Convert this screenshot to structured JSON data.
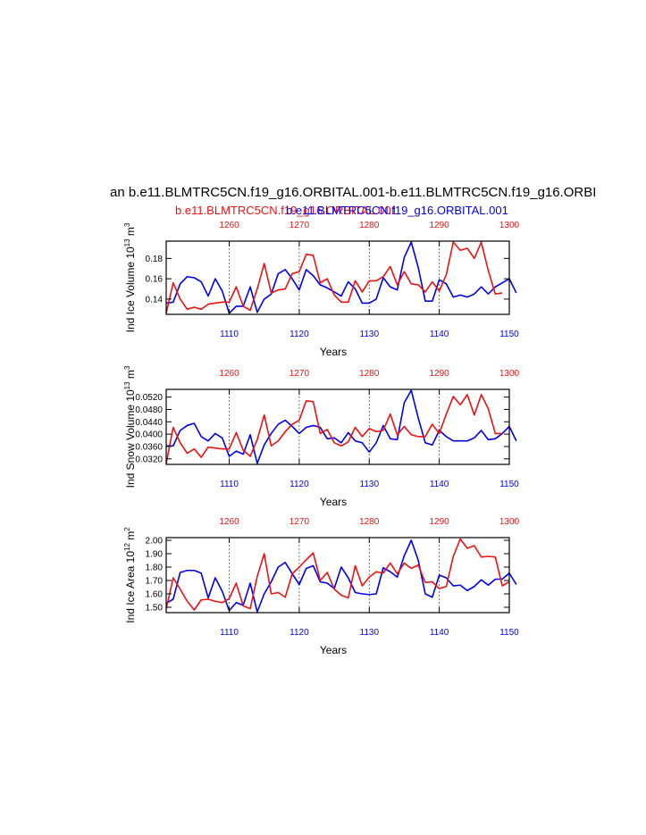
{
  "title": "an b.e11.BLMTRC5CN.f19_g16.ORBITAL.001-b.e11.BLMTRC5CN.f19_g16.ORBI",
  "subtitle_left": "b.e11.BLMTRC5CN.f19_g16.ORBITAL.001",
  "subtitle_right": "b.e11.BLMTRC5CN.f19_g16.ORBITAL.001",
  "colors": {
    "red": "#ee1111",
    "blue": "#0000ee",
    "axis": "#000000"
  },
  "chart_data": [
    {
      "type": "line",
      "ylabel": "Ind Ice Volume 10",
      "ylabel_exp": "13",
      "ylabel_unit": "m",
      "ylabel_unit_exp": "3",
      "xlabel": "Years",
      "ylim": [
        0.125,
        0.197
      ],
      "yticks": [
        0.14,
        0.16,
        0.18
      ],
      "ytick_labels": [
        "0.14",
        "0.16",
        "0.18"
      ],
      "bottom_xlim": [
        1101,
        1150
      ],
      "bottom_xticks": [
        1110,
        1120,
        1130,
        1140,
        1150
      ],
      "top_xlim": [
        1251,
        1300
      ],
      "top_xticks": [
        1260,
        1270,
        1280,
        1290,
        1300
      ],
      "series": [
        {
          "color": "blue",
          "axis": "bottom",
          "x_start": 1101,
          "values": [
            0.136,
            0.137,
            0.155,
            0.162,
            0.161,
            0.157,
            0.143,
            0.16,
            0.148,
            0.126,
            0.133,
            0.133,
            0.152,
            0.127,
            0.14,
            0.145,
            0.165,
            0.169,
            0.16,
            0.149,
            0.169,
            0.163,
            0.154,
            0.151,
            0.147,
            0.143,
            0.157,
            0.15,
            0.136,
            0.136,
            0.14,
            0.161,
            0.152,
            0.149,
            0.181,
            0.196,
            0.171,
            0.138,
            0.138,
            0.159,
            0.155,
            0.142,
            0.144,
            0.142,
            0.145,
            0.152,
            0.145,
            0.152,
            0.156,
            0.16,
            0.146
          ]
        },
        {
          "color": "red",
          "axis": "top",
          "x_start": 1251,
          "values": [
            0.126,
            0.156,
            0.14,
            0.13,
            0.132,
            0.13,
            0.135,
            0.136,
            0.137,
            0.137,
            0.152,
            0.133,
            0.129,
            0.15,
            0.175,
            0.146,
            0.149,
            0.15,
            0.165,
            0.167,
            0.184,
            0.183,
            0.156,
            0.16,
            0.144,
            0.137,
            0.137,
            0.158,
            0.147,
            0.158,
            0.158,
            0.162,
            0.172,
            0.154,
            0.167,
            0.155,
            0.154,
            0.147,
            0.157,
            0.148,
            0.164,
            0.196,
            0.188,
            0.19,
            0.18,
            0.196,
            0.168,
            0.145,
            0.146
          ]
        }
      ]
    },
    {
      "type": "line",
      "ylabel": "Ind Snow Volume 10",
      "ylabel_exp": "13",
      "ylabel_unit": "m",
      "ylabel_unit_exp": "3",
      "xlabel": "Years",
      "ylim": [
        0.0302,
        0.0545
      ],
      "yticks": [
        0.032,
        0.036,
        0.04,
        0.044,
        0.048,
        0.052
      ],
      "ytick_labels": [
        "0.0320",
        "0.0360",
        "0.0400",
        "0.0440",
        "0.0480",
        "0.0520"
      ],
      "bottom_xlim": [
        1101,
        1150
      ],
      "bottom_xticks": [
        1110,
        1120,
        1130,
        1140,
        1150
      ],
      "top_xlim": [
        1251,
        1300
      ],
      "top_xticks": [
        1260,
        1270,
        1280,
        1290,
        1300
      ],
      "series": [
        {
          "color": "blue",
          "axis": "bottom",
          "x_start": 1101,
          "values": [
            0.0362,
            0.0362,
            0.0412,
            0.0428,
            0.0435,
            0.0392,
            0.0378,
            0.0402,
            0.0388,
            0.0328,
            0.0345,
            0.0335,
            0.0398,
            0.0305,
            0.0365,
            0.0402,
            0.0432,
            0.0445,
            0.0425,
            0.0402,
            0.0422,
            0.0428,
            0.0422,
            0.0385,
            0.0388,
            0.0372,
            0.0405,
            0.0378,
            0.0372,
            0.0342,
            0.0372,
            0.0428,
            0.0385,
            0.0382,
            0.0502,
            0.0542,
            0.0452,
            0.0372,
            0.0365,
            0.0412,
            0.0392,
            0.0378,
            0.0378,
            0.0378,
            0.0388,
            0.0412,
            0.0382,
            0.0385,
            0.0402,
            0.0425,
            0.0378
          ]
        },
        {
          "color": "red",
          "axis": "top",
          "x_start": 1251,
          "values": [
            0.0305,
            0.0422,
            0.0372,
            0.0338,
            0.0352,
            0.0325,
            0.0358,
            0.0355,
            0.0352,
            0.0352,
            0.0405,
            0.0348,
            0.0328,
            0.0382,
            0.0462,
            0.0362,
            0.0378,
            0.0408,
            0.0432,
            0.0445,
            0.0508,
            0.0505,
            0.0402,
            0.0415,
            0.0372,
            0.0362,
            0.0375,
            0.0422,
            0.0392,
            0.0418,
            0.0408,
            0.0412,
            0.0465,
            0.0398,
            0.0425,
            0.0398,
            0.0392,
            0.0392,
            0.0432,
            0.0402,
            0.0465,
            0.0522,
            0.0495,
            0.0528,
            0.0462,
            0.0528,
            0.0482,
            0.0402,
            0.0402
          ]
        }
      ]
    },
    {
      "type": "line",
      "ylabel": "Ind Ice Area 10",
      "ylabel_exp": "12",
      "ylabel_unit": "m",
      "ylabel_unit_exp": "2",
      "xlabel": "Years",
      "ylim": [
        1.46,
        2.02
      ],
      "yticks": [
        1.5,
        1.6,
        1.7,
        1.8,
        1.9,
        2.0
      ],
      "ytick_labels": [
        "1.50",
        "1.60",
        "1.70",
        "1.80",
        "1.90",
        "2.00"
      ],
      "bottom_xlim": [
        1101,
        1150
      ],
      "bottom_xticks": [
        1110,
        1120,
        1130,
        1140,
        1150
      ],
      "top_xlim": [
        1251,
        1300
      ],
      "top_xticks": [
        1260,
        1270,
        1280,
        1290,
        1300
      ],
      "series": [
        {
          "color": "blue",
          "axis": "bottom",
          "x_start": 1101,
          "values": [
            1.53,
            1.56,
            1.76,
            1.775,
            1.775,
            1.755,
            1.57,
            1.72,
            1.62,
            1.475,
            1.535,
            1.515,
            1.68,
            1.465,
            1.6,
            1.69,
            1.8,
            1.835,
            1.75,
            1.67,
            1.79,
            1.81,
            1.69,
            1.68,
            1.64,
            1.8,
            1.72,
            1.61,
            1.6,
            1.595,
            1.6,
            1.795,
            1.765,
            1.725,
            1.885,
            2.0,
            1.85,
            1.6,
            1.575,
            1.74,
            1.72,
            1.66,
            1.665,
            1.625,
            1.655,
            1.705,
            1.665,
            1.71,
            1.71,
            1.755,
            1.67
          ]
        },
        {
          "color": "red",
          "axis": "top",
          "x_start": 1251,
          "values": [
            1.485,
            1.72,
            1.635,
            1.545,
            1.48,
            1.555,
            1.56,
            1.545,
            1.535,
            1.565,
            1.68,
            1.51,
            1.49,
            1.73,
            1.9,
            1.6,
            1.61,
            1.575,
            1.75,
            1.8,
            1.855,
            1.905,
            1.7,
            1.76,
            1.635,
            1.59,
            1.57,
            1.81,
            1.66,
            1.725,
            1.765,
            1.755,
            1.83,
            1.75,
            1.83,
            1.79,
            1.815,
            1.685,
            1.69,
            1.64,
            1.655,
            1.88,
            2.01,
            1.94,
            1.96,
            1.875,
            1.88,
            1.875,
            1.66,
            1.69
          ]
        }
      ]
    }
  ]
}
